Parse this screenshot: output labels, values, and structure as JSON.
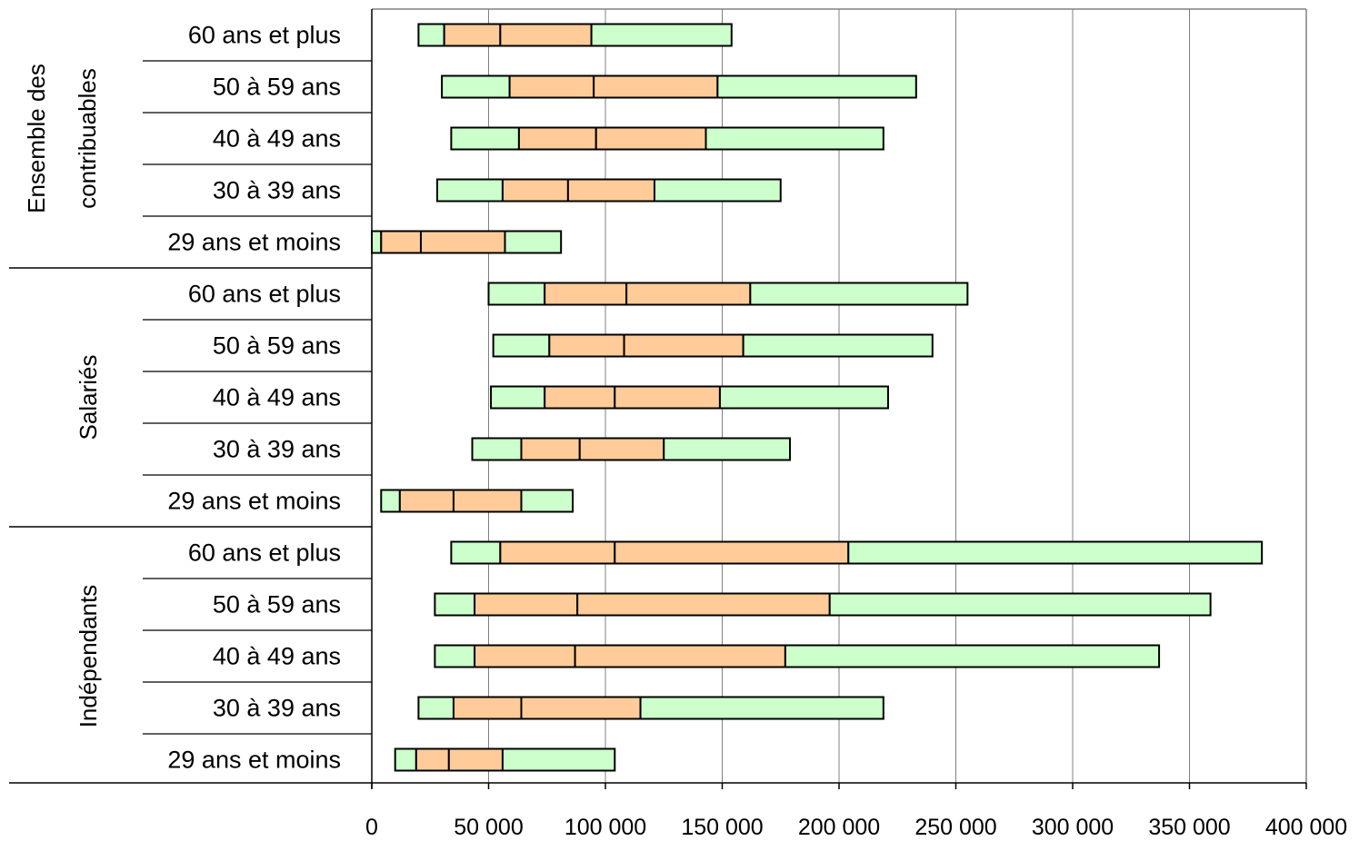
{
  "chart_data": {
    "type": "bar",
    "orientation": "horizontal",
    "stacked": true,
    "description_note": "",
    "xlim": [
      0,
      400000
    ],
    "x_ticks": [
      "0",
      "50 000",
      "100 000",
      "150 000",
      "200 000",
      "250 000",
      "300 000",
      "350 000",
      "400 000"
    ],
    "x_tick_values": [
      0,
      50000,
      100000,
      150000,
      200000,
      250000,
      300000,
      350000,
      400000
    ],
    "grid": "vertical",
    "legend": "none",
    "colors": {
      "outer_segment": "#ccffcc",
      "inner_segment": "#ffcc99",
      "outline": "#000000",
      "grid": "#808080"
    },
    "groups": [
      {
        "label": "Ensemble des contribuables",
        "label_lines": [
          "Ensemble des",
          "contribuables"
        ],
        "rows": [
          {
            "category": "60 ans et plus",
            "boundaries": [
              20000,
              31000,
              55000,
              94000,
              154000
            ]
          },
          {
            "category": "50 à 59 ans",
            "boundaries": [
              30000,
              59000,
              95000,
              148000,
              233000
            ]
          },
          {
            "category": "40 à 49 ans",
            "boundaries": [
              34000,
              63000,
              96000,
              143000,
              219000
            ]
          },
          {
            "category": "30 à 39 ans",
            "boundaries": [
              28000,
              56000,
              84000,
              121000,
              175000
            ]
          },
          {
            "category": "29 ans et moins",
            "boundaries": [
              0,
              4000,
              21000,
              57000,
              81000
            ]
          }
        ]
      },
      {
        "label": "Salariés",
        "label_lines": [
          "Salariés"
        ],
        "rows": [
          {
            "category": "60 ans et plus",
            "boundaries": [
              50000,
              74000,
              109000,
              162000,
              255000
            ]
          },
          {
            "category": "50 à 59 ans",
            "boundaries": [
              52000,
              76000,
              108000,
              159000,
              240000
            ]
          },
          {
            "category": "40 à 49 ans",
            "boundaries": [
              51000,
              74000,
              104000,
              149000,
              221000
            ]
          },
          {
            "category": "30 à 39 ans",
            "boundaries": [
              43000,
              64000,
              89000,
              125000,
              179000
            ]
          },
          {
            "category": "29 ans et moins",
            "boundaries": [
              4000,
              12000,
              35000,
              64000,
              86000
            ]
          }
        ]
      },
      {
        "label": "Indépendants",
        "label_lines": [
          "Indépendants"
        ],
        "rows": [
          {
            "category": "60 ans et plus",
            "boundaries": [
              34000,
              55000,
              104000,
              204000,
              381000
            ]
          },
          {
            "category": "50 à 59 ans",
            "boundaries": [
              27000,
              44000,
              88000,
              196000,
              359000
            ]
          },
          {
            "category": "40 à 49 ans",
            "boundaries": [
              27000,
              44000,
              87000,
              177000,
              337000
            ]
          },
          {
            "category": "30 à 39 ans",
            "boundaries": [
              20000,
              35000,
              64000,
              115000,
              219000
            ]
          },
          {
            "category": "29 ans et moins",
            "boundaries": [
              10000,
              19000,
              33000,
              56000,
              104000
            ]
          }
        ]
      }
    ]
  }
}
